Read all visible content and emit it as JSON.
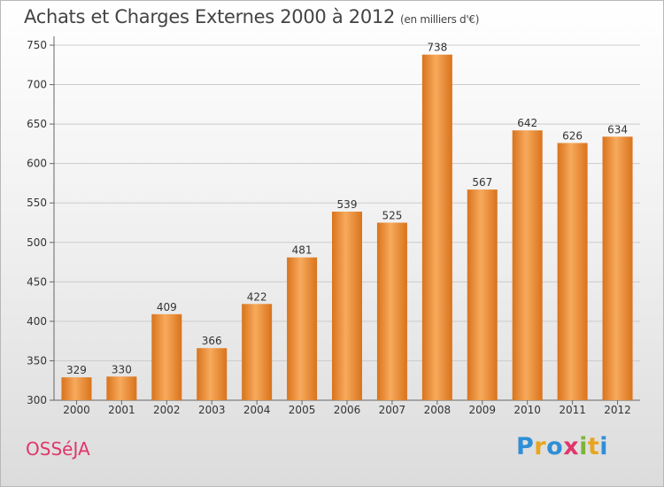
{
  "header": {
    "title": "Achats et Charges Externes 2000 à 2012",
    "unit": "(en milliers d'€)"
  },
  "footer": {
    "commune": "OSSéJA",
    "brand": [
      "P",
      "r",
      "o",
      "x",
      "i",
      "t",
      "i"
    ],
    "brand_colors": [
      "#2f8fd6",
      "#e8a51d",
      "#2f8fd6",
      "#e0356b",
      "#7fb33a",
      "#e8a51d",
      "#2f8fd6"
    ]
  },
  "colors": {
    "bar": "#ee8d35",
    "bar_light": "#f7aa5c",
    "bar_dark": "#d9731c",
    "grid": "#cccccc"
  },
  "chart_data": {
    "type": "bar",
    "title": "Achats et Charges Externes 2000 à 2012",
    "subtitle": "(en milliers d'€)",
    "categories": [
      "2000",
      "2001",
      "2002",
      "2003",
      "2004",
      "2005",
      "2006",
      "2007",
      "2008",
      "2009",
      "2010",
      "2011",
      "2012"
    ],
    "values": [
      329,
      330,
      409,
      366,
      422,
      481,
      539,
      525,
      738,
      567,
      642,
      626,
      634
    ],
    "ylim": [
      300,
      750
    ],
    "yticks": [
      300,
      350,
      400,
      450,
      500,
      550,
      600,
      650,
      700,
      750
    ],
    "grid": true,
    "xlabel": "",
    "ylabel": ""
  }
}
